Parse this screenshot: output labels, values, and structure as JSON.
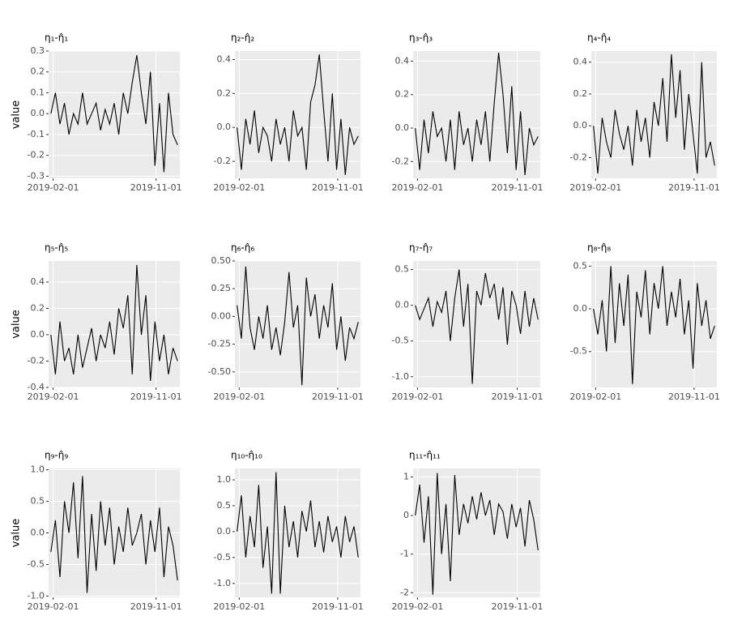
{
  "chart_data": [
    {
      "type": "line",
      "title": "η₁-η̂₁",
      "y_label": "value",
      "color": "#000000",
      "grid": true,
      "x": [
        "2019-01-26",
        "2019-02-07",
        "2019-02-19",
        "2019-03-03",
        "2019-03-15",
        "2019-03-27",
        "2019-04-08",
        "2019-04-20",
        "2019-05-02",
        "2019-05-14",
        "2019-05-26",
        "2019-06-07",
        "2019-06-19",
        "2019-07-01",
        "2019-07-13",
        "2019-07-25",
        "2019-08-06",
        "2019-08-18",
        "2019-08-30",
        "2019-09-11",
        "2019-09-23",
        "2019-10-05",
        "2019-10-17",
        "2019-10-29",
        "2019-11-10",
        "2019-11-22",
        "2019-12-04",
        "2019-12-16",
        "2019-12-28"
      ],
      "values": [
        0.0,
        0.1,
        -0.05,
        0.05,
        -0.1,
        0.0,
        -0.05,
        0.1,
        -0.05,
        0.0,
        0.05,
        -0.08,
        0.02,
        -0.05,
        0.05,
        -0.1,
        0.1,
        0.0,
        0.15,
        0.28,
        0.1,
        -0.05,
        0.2,
        -0.25,
        0.05,
        -0.28,
        0.1,
        -0.1,
        -0.15
      ],
      "xlim": [
        "2019-01-20",
        "2020-01-03"
      ],
      "xticks": [
        "2019-02-01",
        "2019-11-01"
      ],
      "ylim": [
        -0.31,
        0.3
      ],
      "yticks": [
        -0.3,
        -0.2,
        -0.1,
        {
          "value": 0,
          "label": "0.0"
        },
        0.1,
        0.2,
        0.3
      ]
    },
    {
      "type": "line",
      "title": "η₂-η̂₂",
      "color": "#000000",
      "grid": true,
      "x": [
        "2019-01-26",
        "2019-02-07",
        "2019-02-19",
        "2019-03-03",
        "2019-03-15",
        "2019-03-27",
        "2019-04-08",
        "2019-04-20",
        "2019-05-02",
        "2019-05-14",
        "2019-05-26",
        "2019-06-07",
        "2019-06-19",
        "2019-07-01",
        "2019-07-13",
        "2019-07-25",
        "2019-08-06",
        "2019-08-18",
        "2019-08-30",
        "2019-09-11",
        "2019-09-23",
        "2019-10-05",
        "2019-10-17",
        "2019-10-29",
        "2019-11-10",
        "2019-11-22",
        "2019-12-04",
        "2019-12-16",
        "2019-12-28"
      ],
      "values": [
        0.0,
        -0.25,
        0.05,
        -0.1,
        0.1,
        -0.15,
        0.0,
        -0.05,
        -0.2,
        0.05,
        -0.1,
        0.0,
        -0.2,
        0.1,
        -0.05,
        0.0,
        -0.25,
        0.15,
        0.25,
        0.43,
        0.1,
        -0.2,
        0.2,
        -0.25,
        0.05,
        -0.28,
        0.0,
        -0.1,
        -0.05
      ],
      "xlim": [
        "2019-01-20",
        "2020-01-03"
      ],
      "xticks": [
        "2019-02-01",
        "2019-11-01"
      ],
      "ylim": [
        -0.3,
        0.45
      ],
      "yticks": [
        -0.2,
        {
          "value": 0,
          "label": "0.0"
        },
        0.2,
        0.4
      ]
    },
    {
      "type": "line",
      "title": "η₃-η̂₃",
      "color": "#000000",
      "grid": true,
      "x": [
        "2019-01-26",
        "2019-02-07",
        "2019-02-19",
        "2019-03-03",
        "2019-03-15",
        "2019-03-27",
        "2019-04-08",
        "2019-04-20",
        "2019-05-02",
        "2019-05-14",
        "2019-05-26",
        "2019-06-07",
        "2019-06-19",
        "2019-07-01",
        "2019-07-13",
        "2019-07-25",
        "2019-08-06",
        "2019-08-18",
        "2019-08-30",
        "2019-09-11",
        "2019-09-23",
        "2019-10-05",
        "2019-10-17",
        "2019-10-29",
        "2019-11-10",
        "2019-11-22",
        "2019-12-04",
        "2019-12-16",
        "2019-12-28"
      ],
      "values": [
        0.0,
        -0.25,
        0.05,
        -0.15,
        0.1,
        -0.05,
        0.0,
        -0.2,
        0.05,
        -0.25,
        0.1,
        -0.1,
        0.0,
        -0.2,
        0.05,
        -0.1,
        0.1,
        -0.2,
        0.15,
        0.45,
        0.2,
        -0.15,
        0.25,
        -0.25,
        0.1,
        -0.28,
        0.0,
        -0.1,
        -0.05
      ],
      "xlim": [
        "2019-01-20",
        "2020-01-03"
      ],
      "xticks": [
        "2019-02-01",
        "2019-11-01"
      ],
      "ylim": [
        -0.3,
        0.46
      ],
      "yticks": [
        -0.2,
        {
          "value": 0,
          "label": "0.0"
        },
        0.2,
        0.4
      ]
    },
    {
      "type": "line",
      "title": "η₄-η̂₄",
      "color": "#000000",
      "grid": true,
      "x": [
        "2019-01-26",
        "2019-02-07",
        "2019-02-19",
        "2019-03-03",
        "2019-03-15",
        "2019-03-27",
        "2019-04-08",
        "2019-04-20",
        "2019-05-02",
        "2019-05-14",
        "2019-05-26",
        "2019-06-07",
        "2019-06-19",
        "2019-07-01",
        "2019-07-13",
        "2019-07-25",
        "2019-08-06",
        "2019-08-18",
        "2019-08-30",
        "2019-09-11",
        "2019-09-23",
        "2019-10-05",
        "2019-10-17",
        "2019-10-29",
        "2019-11-10",
        "2019-11-22",
        "2019-12-04",
        "2019-12-16",
        "2019-12-28"
      ],
      "values": [
        0.0,
        -0.3,
        0.05,
        -0.1,
        -0.2,
        0.1,
        -0.05,
        -0.15,
        0.0,
        -0.25,
        0.1,
        -0.1,
        0.05,
        -0.2,
        0.15,
        0.0,
        0.3,
        -0.1,
        0.45,
        0.05,
        0.35,
        -0.15,
        0.2,
        -0.05,
        -0.3,
        0.4,
        -0.2,
        -0.1,
        -0.25
      ],
      "xlim": [
        "2019-01-20",
        "2020-01-03"
      ],
      "xticks": [
        "2019-02-01",
        "2019-11-01"
      ],
      "ylim": [
        -0.33,
        0.47
      ],
      "yticks": [
        -0.2,
        {
          "value": 0,
          "label": "0.0"
        },
        0.2,
        0.4
      ]
    },
    {
      "type": "line",
      "title": "η₅-η̂₅",
      "y_label": "value",
      "color": "#000000",
      "grid": true,
      "x": [
        "2019-01-26",
        "2019-02-07",
        "2019-02-19",
        "2019-03-03",
        "2019-03-15",
        "2019-03-27",
        "2019-04-08",
        "2019-04-20",
        "2019-05-02",
        "2019-05-14",
        "2019-05-26",
        "2019-06-07",
        "2019-06-19",
        "2019-07-01",
        "2019-07-13",
        "2019-07-25",
        "2019-08-06",
        "2019-08-18",
        "2019-08-30",
        "2019-09-11",
        "2019-09-23",
        "2019-10-05",
        "2019-10-17",
        "2019-10-29",
        "2019-11-10",
        "2019-11-22",
        "2019-12-04",
        "2019-12-16",
        "2019-12-28"
      ],
      "values": [
        0.0,
        -0.3,
        0.1,
        -0.2,
        -0.1,
        -0.3,
        0.0,
        -0.25,
        -0.1,
        0.05,
        -0.2,
        0.0,
        -0.1,
        0.1,
        -0.15,
        0.2,
        0.05,
        0.3,
        -0.3,
        0.53,
        0.0,
        0.3,
        -0.35,
        0.1,
        -0.2,
        0.0,
        -0.3,
        -0.1,
        -0.2
      ],
      "xlim": [
        "2019-01-20",
        "2020-01-03"
      ],
      "xticks": [
        "2019-02-01",
        "2019-11-01"
      ],
      "ylim": [
        -0.4,
        0.56
      ],
      "yticks": [
        -0.4,
        -0.2,
        {
          "value": 0,
          "label": "0.0"
        },
        0.2,
        0.4
      ]
    },
    {
      "type": "line",
      "title": "η₆-η̂₆",
      "color": "#000000",
      "grid": true,
      "x": [
        "2019-01-26",
        "2019-02-07",
        "2019-02-19",
        "2019-03-03",
        "2019-03-15",
        "2019-03-27",
        "2019-04-08",
        "2019-04-20",
        "2019-05-02",
        "2019-05-14",
        "2019-05-26",
        "2019-06-07",
        "2019-06-19",
        "2019-07-01",
        "2019-07-13",
        "2019-07-25",
        "2019-08-06",
        "2019-08-18",
        "2019-08-30",
        "2019-09-11",
        "2019-09-23",
        "2019-10-05",
        "2019-10-17",
        "2019-10-29",
        "2019-11-10",
        "2019-11-22",
        "2019-12-04",
        "2019-12-16",
        "2019-12-28"
      ],
      "values": [
        0.1,
        -0.2,
        0.45,
        -0.1,
        -0.3,
        0.0,
        -0.2,
        0.1,
        -0.3,
        -0.1,
        -0.35,
        -0.05,
        0.4,
        -0.1,
        0.1,
        -0.62,
        0.35,
        0.0,
        0.2,
        -0.2,
        0.1,
        -0.1,
        0.3,
        -0.3,
        0.0,
        -0.4,
        -0.1,
        -0.2,
        -0.05
      ],
      "xlim": [
        "2019-01-20",
        "2020-01-03"
      ],
      "xticks": [
        "2019-02-01",
        "2019-11-01"
      ],
      "ylim": [
        -0.64,
        0.5
      ],
      "yticks": [
        {
          "value": -0.5,
          "label": "-0.50"
        },
        {
          "value": -0.25,
          "label": "-0.25"
        },
        {
          "value": 0,
          "label": "0.00"
        },
        {
          "value": 0.25,
          "label": "0.25"
        },
        {
          "value": 0.5,
          "label": "0.50"
        }
      ]
    },
    {
      "type": "line",
      "title": "η₇-η̂₇",
      "color": "#000000",
      "grid": true,
      "x": [
        "2019-01-26",
        "2019-02-07",
        "2019-02-19",
        "2019-03-03",
        "2019-03-15",
        "2019-03-27",
        "2019-04-08",
        "2019-04-20",
        "2019-05-02",
        "2019-05-14",
        "2019-05-26",
        "2019-06-07",
        "2019-06-19",
        "2019-07-01",
        "2019-07-13",
        "2019-07-25",
        "2019-08-06",
        "2019-08-18",
        "2019-08-30",
        "2019-09-11",
        "2019-09-23",
        "2019-10-05",
        "2019-10-17",
        "2019-10-29",
        "2019-11-10",
        "2019-11-22",
        "2019-12-04",
        "2019-12-16",
        "2019-12-28"
      ],
      "values": [
        0.0,
        -0.2,
        -0.05,
        0.1,
        -0.3,
        0.05,
        -0.1,
        0.2,
        -0.5,
        0.1,
        0.5,
        -0.3,
        0.3,
        -1.1,
        0.2,
        0.0,
        0.45,
        0.1,
        0.3,
        -0.2,
        0.25,
        -0.55,
        0.2,
        0.0,
        -0.4,
        0.2,
        -0.3,
        0.1,
        -0.2
      ],
      "xlim": [
        "2019-01-20",
        "2020-01-03"
      ],
      "xticks": [
        "2019-02-01",
        "2019-11-01"
      ],
      "ylim": [
        -1.15,
        0.62
      ],
      "yticks": [
        {
          "value": -1,
          "label": "-1.0"
        },
        -0.5,
        {
          "value": 0,
          "label": "0.0"
        },
        0.5
      ]
    },
    {
      "type": "line",
      "title": "η₈-η̂₈",
      "color": "#000000",
      "grid": true,
      "x": [
        "2019-01-26",
        "2019-02-07",
        "2019-02-19",
        "2019-03-03",
        "2019-03-15",
        "2019-03-27",
        "2019-04-08",
        "2019-04-20",
        "2019-05-02",
        "2019-05-14",
        "2019-05-26",
        "2019-06-07",
        "2019-06-19",
        "2019-07-01",
        "2019-07-13",
        "2019-07-25",
        "2019-08-06",
        "2019-08-18",
        "2019-08-30",
        "2019-09-11",
        "2019-09-23",
        "2019-10-05",
        "2019-10-17",
        "2019-10-29",
        "2019-11-10",
        "2019-11-22",
        "2019-12-04",
        "2019-12-16",
        "2019-12-28"
      ],
      "values": [
        0.0,
        -0.3,
        0.1,
        -0.5,
        0.5,
        -0.4,
        0.3,
        -0.2,
        0.4,
        -0.88,
        0.2,
        -0.1,
        0.45,
        -0.3,
        0.3,
        0.0,
        0.5,
        -0.2,
        0.2,
        -0.1,
        0.35,
        -0.3,
        0.1,
        -0.7,
        0.3,
        -0.2,
        0.1,
        -0.35,
        -0.2
      ],
      "xlim": [
        "2019-01-20",
        "2020-01-03"
      ],
      "xticks": [
        "2019-02-01",
        "2019-11-01"
      ],
      "ylim": [
        -0.92,
        0.56
      ],
      "yticks": [
        -0.5,
        {
          "value": 0,
          "label": "0.0"
        },
        0.5
      ]
    },
    {
      "type": "line",
      "title": "η₉-η̂₉",
      "y_label": "value",
      "color": "#000000",
      "grid": true,
      "x": [
        "2019-01-26",
        "2019-02-07",
        "2019-02-19",
        "2019-03-03",
        "2019-03-15",
        "2019-03-27",
        "2019-04-08",
        "2019-04-20",
        "2019-05-02",
        "2019-05-14",
        "2019-05-26",
        "2019-06-07",
        "2019-06-19",
        "2019-07-01",
        "2019-07-13",
        "2019-07-25",
        "2019-08-06",
        "2019-08-18",
        "2019-08-30",
        "2019-09-11",
        "2019-09-23",
        "2019-10-05",
        "2019-10-17",
        "2019-10-29",
        "2019-11-10",
        "2019-11-22",
        "2019-12-04",
        "2019-12-16",
        "2019-12-28"
      ],
      "values": [
        -0.3,
        0.2,
        -0.7,
        0.5,
        0.0,
        0.8,
        -0.4,
        0.9,
        -0.95,
        0.3,
        -0.6,
        0.5,
        -0.2,
        0.4,
        -0.5,
        0.1,
        -0.3,
        0.4,
        -0.2,
        0.0,
        0.3,
        -0.5,
        0.2,
        -0.3,
        0.4,
        -0.7,
        0.1,
        -0.2,
        -0.75
      ],
      "xlim": [
        "2019-01-20",
        "2020-01-03"
      ],
      "xticks": [
        "2019-02-01",
        "2019-11-01"
      ],
      "ylim": [
        -1.02,
        1.02
      ],
      "yticks": [
        {
          "value": -1,
          "label": "-1.0"
        },
        -0.5,
        {
          "value": 0,
          "label": "0.0"
        },
        0.5,
        {
          "value": 1,
          "label": "1.0"
        }
      ]
    },
    {
      "type": "line",
      "title": "η₁₀-η̂₁₀",
      "color": "#000000",
      "grid": true,
      "x": [
        "2019-01-26",
        "2019-02-07",
        "2019-02-19",
        "2019-03-03",
        "2019-03-15",
        "2019-03-27",
        "2019-04-08",
        "2019-04-20",
        "2019-05-02",
        "2019-05-14",
        "2019-05-26",
        "2019-06-07",
        "2019-06-19",
        "2019-07-01",
        "2019-07-13",
        "2019-07-25",
        "2019-08-06",
        "2019-08-18",
        "2019-08-30",
        "2019-09-11",
        "2019-09-23",
        "2019-10-05",
        "2019-10-17",
        "2019-10-29",
        "2019-11-10",
        "2019-11-22",
        "2019-12-04",
        "2019-12-16",
        "2019-12-28"
      ],
      "values": [
        0.0,
        0.7,
        -0.5,
        0.3,
        -0.3,
        0.9,
        -0.7,
        0.1,
        -1.2,
        1.15,
        -1.2,
        0.5,
        -0.3,
        0.2,
        -0.5,
        0.4,
        0.0,
        0.6,
        -0.3,
        0.2,
        -0.4,
        0.3,
        -0.2,
        0.1,
        -0.5,
        0.3,
        -0.2,
        0.1,
        -0.5
      ],
      "xlim": [
        "2019-01-20",
        "2020-01-03"
      ],
      "xticks": [
        "2019-02-01",
        "2019-11-01"
      ],
      "ylim": [
        -1.27,
        1.22
      ],
      "yticks": [
        {
          "value": -1,
          "label": "-1.0"
        },
        -0.5,
        {
          "value": 0,
          "label": "0.0"
        },
        0.5,
        {
          "value": 1,
          "label": "1.0"
        }
      ]
    },
    {
      "type": "line",
      "title": "η₁₁-η̂₁₁",
      "color": "#000000",
      "grid": true,
      "x": [
        "2019-01-26",
        "2019-02-07",
        "2019-02-19",
        "2019-03-03",
        "2019-03-15",
        "2019-03-27",
        "2019-04-08",
        "2019-04-20",
        "2019-05-02",
        "2019-05-14",
        "2019-05-26",
        "2019-06-07",
        "2019-06-19",
        "2019-07-01",
        "2019-07-13",
        "2019-07-25",
        "2019-08-06",
        "2019-08-18",
        "2019-08-30",
        "2019-09-11",
        "2019-09-23",
        "2019-10-05",
        "2019-10-17",
        "2019-10-29",
        "2019-11-10",
        "2019-11-22",
        "2019-12-04",
        "2019-12-16",
        "2019-12-28"
      ],
      "values": [
        0.0,
        0.8,
        -0.7,
        0.5,
        -2.05,
        1.1,
        -1.0,
        0.3,
        -1.7,
        1.05,
        -0.5,
        0.3,
        -0.2,
        0.5,
        -0.1,
        0.6,
        0.0,
        0.4,
        -0.5,
        0.3,
        0.1,
        -0.6,
        0.3,
        -0.3,
        0.2,
        -0.8,
        0.4,
        -0.1,
        -0.9
      ],
      "xlim": [
        "2019-01-20",
        "2020-01-03"
      ],
      "xticks": [
        "2019-02-01",
        "2019-11-01"
      ],
      "ylim": [
        -2.12,
        1.22
      ],
      "yticks": [
        -2,
        -1,
        0,
        1
      ]
    }
  ]
}
